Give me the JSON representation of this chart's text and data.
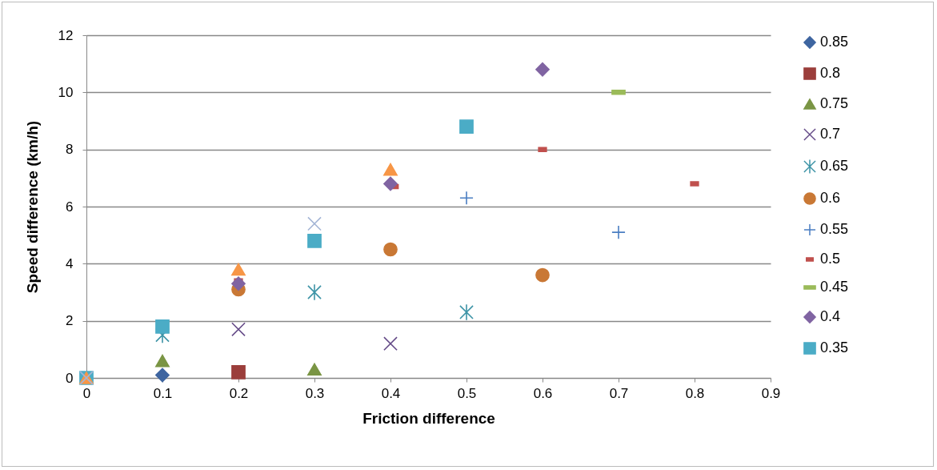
{
  "chart_data": {
    "type": "scatter",
    "xlabel": "Friction difference",
    "ylabel": "Speed difference (km/h)",
    "xlim": [
      0,
      0.9
    ],
    "xticks": [
      0,
      0.1,
      0.2,
      0.3,
      0.4,
      0.5,
      0.6,
      0.7,
      0.8,
      0.9
    ],
    "ylim": [
      0,
      12
    ],
    "yticks": [
      0,
      2,
      4,
      6,
      8,
      10,
      12
    ],
    "grid": "y",
    "legend": "right",
    "series": [
      {
        "name": "0.85",
        "color": "#3e65a0",
        "marker": "diamond",
        "x": [
          0.1
        ],
        "values": [
          0.1
        ]
      },
      {
        "name": "0.8",
        "color": "#9b3e3b",
        "marker": "square",
        "x": [
          0.2
        ],
        "values": [
          0.2
        ]
      },
      {
        "name": "0.75",
        "color": "#7a9544",
        "marker": "triangle",
        "x": [
          0.1,
          0.3
        ],
        "values": [
          0.6,
          0.3
        ]
      },
      {
        "name": "0.7",
        "color": "#654b88",
        "marker": "cross",
        "x": [
          0.2,
          0.4
        ],
        "values": [
          1.7,
          1.2
        ]
      },
      {
        "name": "0.65",
        "color": "#3c93a6",
        "x": [
          0.1,
          0.3,
          0.5
        ],
        "values": [
          1.5,
          3.0,
          2.3
        ]
      },
      {
        "name": "0.6",
        "color": "#c97835",
        "marker": "circle",
        "x": [
          0.2,
          0.4,
          0.6
        ],
        "values": [
          3.1,
          4.5,
          3.6
        ]
      },
      {
        "name": "0.55",
        "color": "#4a7ec2",
        "marker": "plus",
        "x": [
          0.5,
          0.7
        ],
        "values": [
          6.3,
          5.1
        ]
      },
      {
        "name": "0.5",
        "color": "#c0504d",
        "x": [
          0.2,
          0.405,
          0.6,
          0.8
        ],
        "values": [
          3.4,
          6.7,
          8.0,
          6.8
        ]
      },
      {
        "name": "0.45",
        "color": "#9bbb59",
        "x": [
          0.7
        ],
        "values": [
          10.0
        ]
      },
      {
        "name": "0.4",
        "color": "#8064a2",
        "marker": "diamond",
        "x": [
          0.2,
          0.4,
          0.6
        ],
        "values": [
          3.3,
          6.8,
          10.8
        ]
      },
      {
        "name": "0.35",
        "color": "#4bacc6",
        "marker": "square",
        "x": [
          0,
          0.1,
          0.3,
          0.5
        ],
        "values": [
          0,
          1.8,
          4.8,
          8.8
        ]
      },
      {
        "color": "#f79646",
        "marker": "triangle",
        "x": [
          0,
          0.2,
          0.4
        ],
        "values": [
          0,
          3.8,
          7.3
        ]
      },
      {
        "color": "#a5b6d6",
        "marker": "cross",
        "x": [
          0,
          0.3
        ],
        "values": [
          0,
          5.4
        ]
      }
    ]
  }
}
